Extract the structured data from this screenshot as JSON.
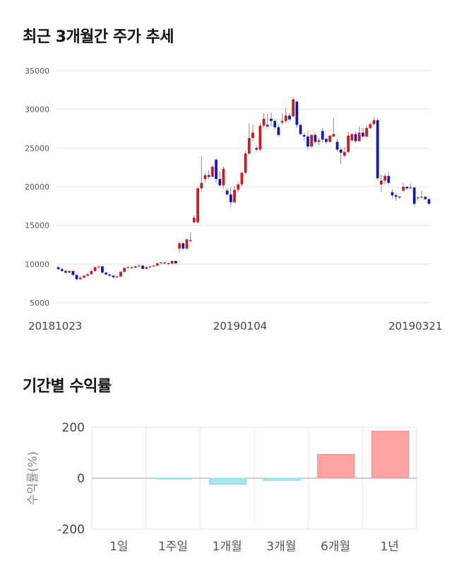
{
  "sections": {
    "price_title": "최근 3개월간 주가 추세",
    "return_title": "기간별 수익률"
  },
  "chart_data": [
    {
      "type": "candlestick",
      "title": "최근 3개월간 주가 추세",
      "ylim": [
        5000,
        35000
      ],
      "yticks": [
        "35000",
        "30000",
        "25000",
        "20000",
        "15000",
        "10000",
        "5000"
      ],
      "xtick_labels": [
        "20181023",
        "20190104",
        "20190321"
      ],
      "grid": true,
      "up_color": "#d0191b",
      "down_color": "#1515c8",
      "candles": [
        [
          9600,
          9700,
          9250,
          9350
        ],
        [
          9350,
          9500,
          9000,
          9100
        ],
        [
          9100,
          9300,
          8700,
          8900
        ],
        [
          8900,
          9200,
          8800,
          9100
        ],
        [
          9100,
          9200,
          8500,
          8600
        ],
        [
          8600,
          8700,
          7900,
          8050
        ],
        [
          8050,
          8400,
          7950,
          8250
        ],
        [
          8250,
          8600,
          8150,
          8500
        ],
        [
          8500,
          8800,
          8400,
          8700
        ],
        [
          8700,
          9200,
          8600,
          9100
        ],
        [
          9100,
          9700,
          9000,
          9600
        ],
        [
          9600,
          9800,
          9400,
          9700
        ],
        [
          9700,
          9800,
          8800,
          8900
        ],
        [
          8900,
          9000,
          8600,
          8650
        ],
        [
          8650,
          8800,
          8400,
          8500
        ],
        [
          8500,
          8600,
          8200,
          8300
        ],
        [
          8300,
          8500,
          8200,
          8400
        ],
        [
          8400,
          9100,
          8300,
          9000
        ],
        [
          9000,
          9600,
          8900,
          9500
        ],
        [
          9500,
          9700,
          9400,
          9600
        ],
        [
          9600,
          9700,
          9400,
          9550
        ],
        [
          9550,
          9800,
          9450,
          9700
        ],
        [
          9700,
          10000,
          9600,
          9800
        ],
        [
          9800,
          9900,
          9300,
          9400
        ],
        [
          9400,
          9700,
          9300,
          9600
        ],
        [
          9600,
          9800,
          9500,
          9700
        ],
        [
          9700,
          9900,
          9600,
          9800
        ],
        [
          9800,
          10200,
          9700,
          10100
        ],
        [
          10100,
          10300,
          10000,
          10200
        ],
        [
          10200,
          10300,
          10000,
          10100
        ],
        [
          10100,
          10200,
          9900,
          10050
        ],
        [
          10050,
          10500,
          10000,
          10400
        ],
        [
          10400,
          10500,
          10000,
          10100
        ],
        [
          12000,
          12900,
          11500,
          12700
        ],
        [
          12700,
          12800,
          11800,
          12000
        ],
        [
          12000,
          13300,
          11900,
          13200
        ],
        [
          13100,
          14100,
          12800,
          13000
        ],
        [
          15400,
          16300,
          15200,
          16000
        ],
        [
          15400,
          20000,
          15300,
          19800
        ],
        [
          19800,
          24000,
          19400,
          20500
        ],
        [
          21000,
          21800,
          20600,
          21500
        ],
        [
          21500,
          22100,
          21000,
          21300
        ],
        [
          21300,
          22800,
          21200,
          22600
        ],
        [
          23500,
          23700,
          20500,
          21000
        ],
        [
          21000,
          22000,
          20000,
          20200
        ],
        [
          20200,
          22600,
          19800,
          22300
        ],
        [
          19500,
          19800,
          18800,
          19000
        ],
        [
          19000,
          19900,
          17400,
          18000
        ],
        [
          18000,
          20100,
          17800,
          19600
        ],
        [
          19600,
          20600,
          19300,
          20300
        ],
        [
          20300,
          22000,
          20000,
          21800
        ],
        [
          21800,
          24600,
          21600,
          24300
        ],
        [
          24300,
          28200,
          24100,
          26300
        ],
        [
          26300,
          28100,
          25900,
          27000
        ],
        [
          25000,
          25300,
          24600,
          24800
        ],
        [
          24800,
          28200,
          24600,
          27900
        ],
        [
          27900,
          29500,
          27600,
          28800
        ],
        [
          28000,
          29400,
          27600,
          27800
        ],
        [
          28800,
          29600,
          27800,
          28500
        ],
        [
          28500,
          28700,
          27400,
          27700
        ],
        [
          27700,
          28100,
          26500,
          26700
        ],
        [
          28300,
          29500,
          28000,
          28500
        ],
        [
          28500,
          30200,
          28300,
          29200
        ],
        [
          29200,
          29500,
          28500,
          28700
        ],
        [
          29100,
          31600,
          29000,
          31300
        ],
        [
          31000,
          31200,
          27600,
          28000
        ],
        [
          28000,
          28200,
          26700,
          26800
        ],
        [
          26700,
          27000,
          25900,
          26500
        ],
        [
          26500,
          27200,
          24800,
          25200
        ],
        [
          25200,
          26800,
          25000,
          26700
        ],
        [
          26700,
          27000,
          25600,
          25800
        ],
        [
          25800,
          26300,
          25400,
          26000
        ],
        [
          27200,
          27600,
          25700,
          26100
        ],
        [
          26200,
          26300,
          25500,
          25800
        ],
        [
          25800,
          26700,
          25700,
          26600
        ],
        [
          26500,
          28900,
          26400,
          26800
        ],
        [
          25800,
          26200,
          24600,
          24800
        ],
        [
          24800,
          25100,
          22900,
          24400
        ],
        [
          24000,
          25100,
          23800,
          24500
        ],
        [
          24500,
          27100,
          24400,
          26600
        ],
        [
          26000,
          27000,
          25800,
          26800
        ],
        [
          26800,
          27100,
          25700,
          25900
        ],
        [
          25900,
          27800,
          25800,
          27000
        ],
        [
          27000,
          27600,
          26400,
          26500
        ],
        [
          26500,
          28000,
          26300,
          27600
        ],
        [
          27600,
          28300,
          27400,
          28100
        ],
        [
          28100,
          29000,
          27900,
          28600
        ],
        [
          28600,
          28800,
          20900,
          21100
        ],
        [
          20300,
          21600,
          19300,
          20800
        ],
        [
          20800,
          21700,
          20300,
          21400
        ],
        [
          21400,
          21900,
          20300,
          20500
        ],
        [
          19300,
          19700,
          18500,
          18900
        ],
        [
          18900,
          19200,
          18200,
          18700
        ],
        [
          18700,
          18800,
          18400,
          18600
        ],
        [
          19500,
          20500,
          19300,
          20000
        ],
        [
          20000,
          20100,
          19600,
          19800
        ],
        [
          19800,
          20400,
          19700,
          19900
        ],
        [
          19900,
          20000,
          17400,
          17800
        ],
        [
          18500,
          18800,
          18200,
          18600
        ],
        [
          18600,
          19500,
          18400,
          18700
        ],
        [
          18700,
          18800,
          18300,
          18400
        ],
        [
          18400,
          18500,
          17600,
          17800
        ]
      ]
    },
    {
      "type": "bar",
      "title": "기간별 수익률",
      "ylabel": "수익률(%)",
      "ylim": [
        -200,
        200
      ],
      "yticks": [
        "200",
        "0",
        "-200"
      ],
      "categories": [
        "1일",
        "1주일",
        "1개월",
        "3개월",
        "6개월",
        "1년"
      ],
      "values": [
        0,
        -2,
        -24,
        -9,
        93,
        185
      ],
      "positive_color": "#ffa3a3",
      "negative_color": "#a8e6ef",
      "grid": true
    }
  ]
}
